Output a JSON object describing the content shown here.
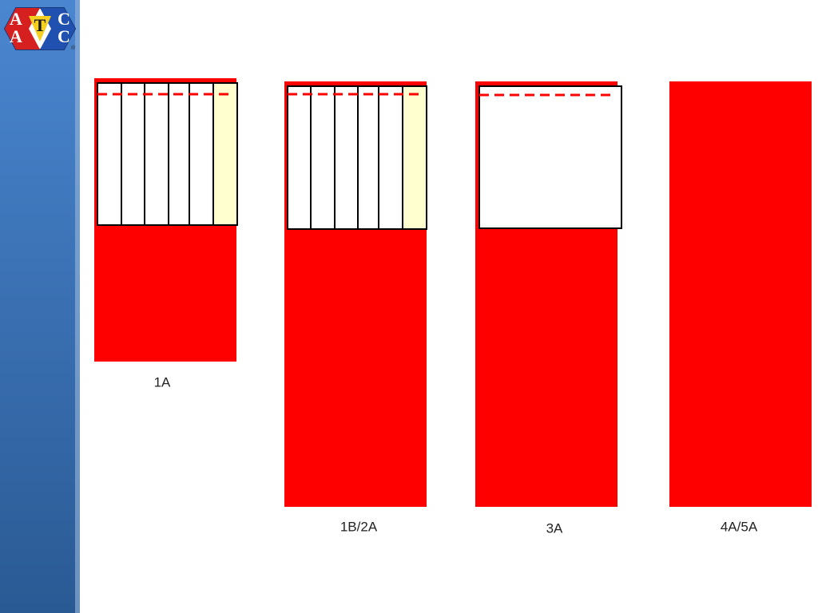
{
  "logo": {
    "letters": [
      "A",
      "A",
      "T",
      "C",
      "C"
    ],
    "mark": "®"
  },
  "panels": [
    {
      "label": "1A"
    },
    {
      "label": "1B/2A"
    },
    {
      "label": "3A"
    },
    {
      "label": "4A/5A"
    }
  ]
}
